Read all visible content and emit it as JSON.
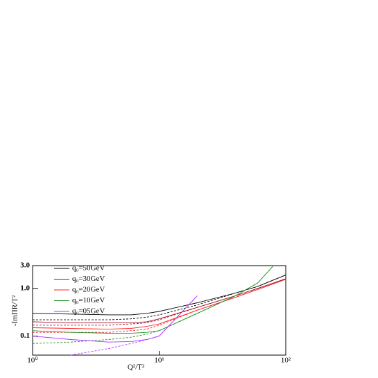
{
  "chart_data": {
    "type": "line",
    "x_label": "Q²/T²",
    "y_label": "-ImΠR/T²",
    "x": [
      1,
      2,
      4,
      6,
      8,
      10,
      20,
      40,
      60,
      80,
      100
    ],
    "series": [
      {
        "name": "q₀=50GeV",
        "color": "#000000",
        "values": [
          0.3,
          0.29,
          0.28,
          0.28,
          0.3,
          0.33,
          0.5,
          0.8,
          1.1,
          1.5,
          1.9
        ],
        "dashed": [
          0.22,
          0.22,
          0.22,
          0.23,
          0.25,
          0.28,
          0.45,
          0.8,
          1.1,
          1.5,
          1.9
        ]
      },
      {
        "name": "q₀=30GeV",
        "color": "#a0102a",
        "values": [
          0.2,
          0.19,
          0.19,
          0.19,
          0.2,
          0.23,
          0.4,
          0.7,
          1.0,
          1.3,
          1.6
        ],
        "dashed": [
          0.17,
          0.17,
          0.17,
          0.18,
          0.19,
          0.22,
          0.4,
          0.7,
          1.0,
          1.3,
          1.6
        ]
      },
      {
        "name": "q₀=20GeV",
        "color": "#ff2020",
        "values": [
          0.15,
          0.145,
          0.14,
          0.145,
          0.16,
          0.18,
          0.35,
          0.65,
          0.95,
          1.25,
          1.55
        ],
        "dashed": [
          0.12,
          0.12,
          0.12,
          0.13,
          0.14,
          0.17,
          0.35,
          0.65,
          0.95,
          1.25,
          1.55
        ]
      },
      {
        "name": "q₀=10GeV",
        "color": "#209020",
        "values": [
          0.13,
          0.12,
          0.115,
          0.115,
          0.12,
          0.13,
          0.3,
          0.7,
          1.3,
          3.0,
          null
        ],
        "dashed": [
          0.07,
          0.075,
          0.085,
          0.095,
          0.11,
          0.13,
          0.3,
          0.7,
          1.3,
          3.0,
          null
        ]
      },
      {
        "name": "q₀=05GeV",
        "color": "#b030ff",
        "values": [
          0.1,
          0.085,
          0.075,
          0.077,
          0.085,
          0.1,
          0.7,
          null,
          null,
          null,
          null
        ],
        "dashed": [
          null,
          0.04,
          0.055,
          0.07,
          0.085,
          0.1,
          0.7,
          null,
          null,
          null,
          null
        ]
      }
    ],
    "log_x": true,
    "log_y": true,
    "xlim": [
      1,
      100
    ],
    "ylim": [
      0.04,
      3.0
    ],
    "xticks": [
      {
        "value": 1,
        "label": "10⁰"
      },
      {
        "value": 10,
        "label": "10¹"
      },
      {
        "value": 100,
        "label": "10²"
      }
    ],
    "yticks": [
      {
        "value": 3,
        "label": "3.0"
      },
      {
        "value": 1,
        "label": "1.0"
      },
      0.1
    ],
    "legend": "upper left"
  }
}
